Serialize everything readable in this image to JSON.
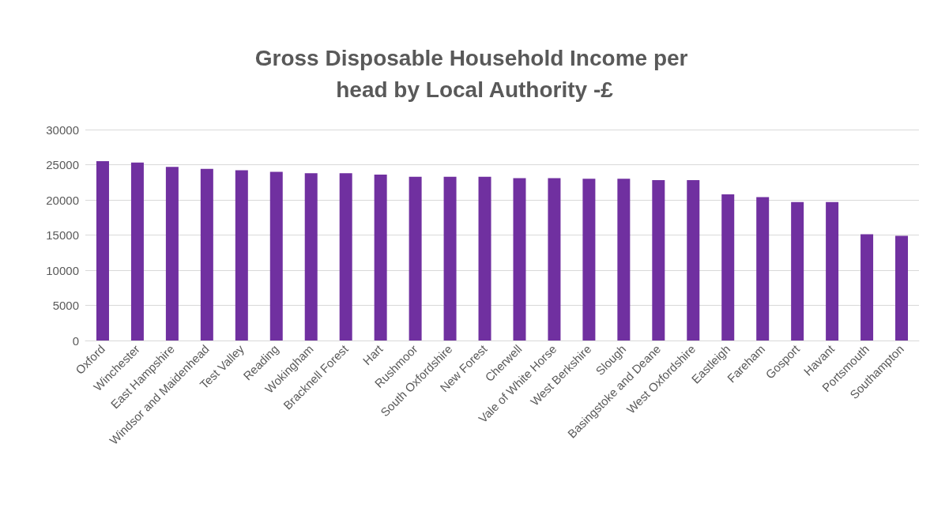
{
  "chart_data": {
    "type": "bar",
    "title": "Gross Disposable Household Income per head by Local Authority -£",
    "categories": [
      "Oxford",
      "Winchester",
      "East Hampshire",
      "Windsor and Maidenhead",
      "Test Valley",
      "Reading",
      "Wokingham",
      "Bracknell Forest",
      "Hart",
      "Rushmoor",
      "South Oxfordshire",
      "New Forest",
      "Cherwell",
      "Vale of White Horse",
      "West Berkshire",
      "Slough",
      "Basingstoke and Deane",
      "West Oxfordshire",
      "Eastleigh",
      "Fareham",
      "Gosport",
      "Havant",
      "Portsmouth",
      "Southampton"
    ],
    "values": [
      25500,
      25300,
      24700,
      24400,
      24200,
      24000,
      23800,
      23800,
      23600,
      23300,
      23300,
      23300,
      23100,
      23100,
      23000,
      23000,
      22800,
      22800,
      20800,
      20400,
      19700,
      19700,
      15100,
      14900
    ],
    "color": "#7030a0",
    "ylim": [
      0,
      30000
    ],
    "yticks": [
      0,
      5000,
      10000,
      15000,
      20000,
      25000,
      30000
    ],
    "grid": "y"
  }
}
